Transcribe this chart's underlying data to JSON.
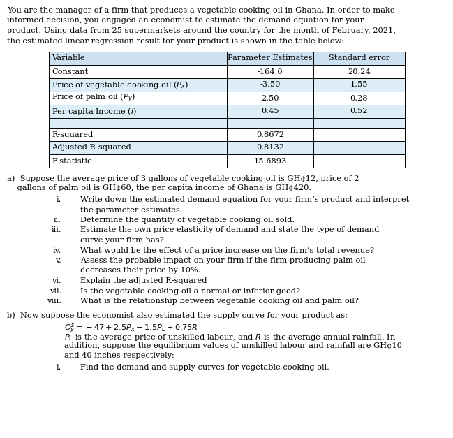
{
  "intro_lines": [
    "You are the manager of a firm that produces a vegetable cooking oil in Ghana. In order to make",
    "informed decision, you engaged an economist to estimate the demand equation for your",
    "product. Using data from 25 supermarkets around the country for the month of February, 2021,",
    "the estimated linear regression result for your product is shown in the table below:"
  ],
  "table_headers": [
    "Variable",
    "Parameter Estimates",
    "Standard error"
  ],
  "table_data_rows": [
    [
      "Constant",
      "-164.0",
      "20.24"
    ],
    [
      "Price of vegetable cooking oil ($P_x$)",
      "-3.50",
      "1.55"
    ],
    [
      "Price of palm oil ($P_y$)",
      "2.50",
      "0.28"
    ],
    [
      "Per capita Income ($I$)",
      "0.45",
      "0.52"
    ]
  ],
  "table_stat_rows": [
    [
      "R-squared",
      "0.8672",
      ""
    ],
    [
      "Adjusted R-squared",
      "0.8132",
      ""
    ],
    [
      "F-statistic",
      "15.6893",
      ""
    ]
  ],
  "header_bg": "#cce0f0",
  "alt_bg": "#ddeef8",
  "white_bg": "#ffffff",
  "border_color": "#000000",
  "part_a_line1": "a)  Suppose the average price of 3 gallons of vegetable cooking oil is GH¢12, price of 2",
  "part_a_line2": "    gallons of palm oil is GH¢60, the per capita income of Ghana is GH¢420.",
  "part_a_items": [
    [
      "i.",
      "Write down the estimated demand equation for your firm’s product and interpret"
    ],
    [
      "",
      "the parameter estimates."
    ],
    [
      "ii.",
      "Determine the quantity of vegetable cooking oil sold."
    ],
    [
      "iii.",
      "Estimate the own price elasticity of demand and state the type of demand"
    ],
    [
      "",
      "curve your firm has?"
    ],
    [
      "iv.",
      "What would be the effect of a price increase on the firm’s total revenue?"
    ],
    [
      "v.",
      "Assess the probable impact on your firm if the firm producing palm oil"
    ],
    [
      "",
      "decreases their price by 10%."
    ],
    [
      "vi.",
      "Explain the adjusted R-squared"
    ],
    [
      "vii.",
      "Is the vegetable cooking oil a normal or inferior good?"
    ],
    [
      "viii.",
      "What is the relationship between vegetable cooking oil and palm oil?"
    ]
  ],
  "part_b_line1": "b)  Now suppose the economist also estimated the supply curve for your product as:",
  "part_b_eq": "$Q_x^s = -47 + 2.5P_x - 1.5P_L + 0.75R$",
  "part_b_text1": "$P_L$ is the average price of unskilled labour, and $R$ is the average annual rainfall. In",
  "part_b_text2": "addition, suppose the equilibrium values of unskilled labour and rainfall are GH¢10",
  "part_b_text3": "and 40 inches respectively:",
  "part_b_item_num": "i.",
  "part_b_item_text": "Find the demand and supply curves for vegetable cooking oil.",
  "font_size": 8.2,
  "bg_color": "#ffffff",
  "text_color": "#000000"
}
